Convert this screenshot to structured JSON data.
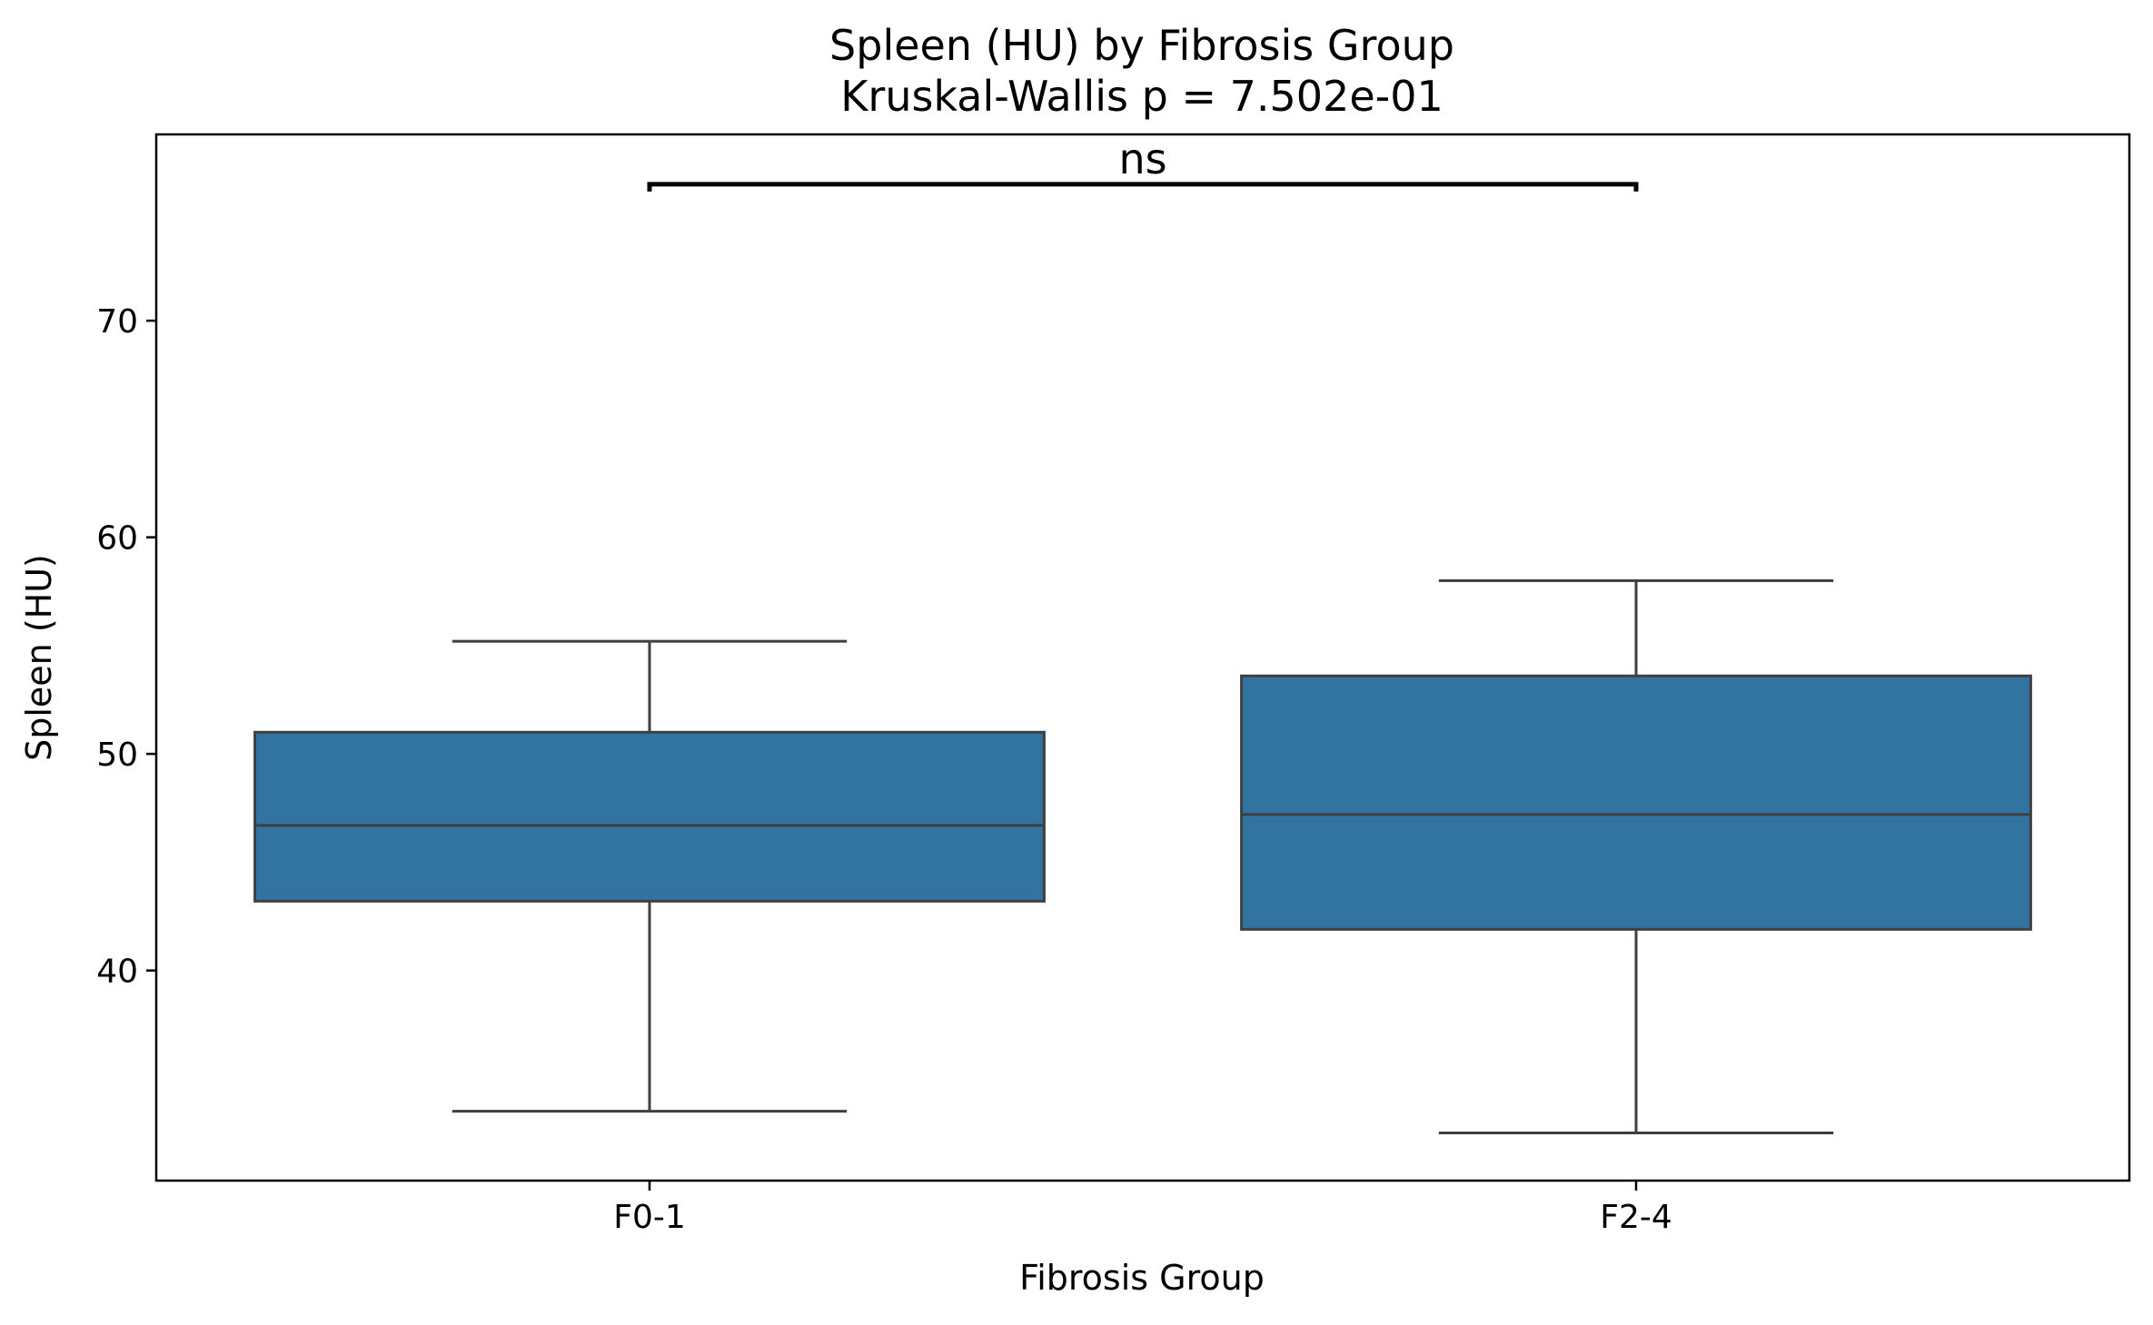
{
  "chart_data": {
    "type": "box",
    "title": "Spleen (HU) by Fibrosis Group",
    "subtitle": "Kruskal-Wallis p = 7.502e-01",
    "xlabel": "Fibrosis Group",
    "ylabel": "Spleen (HU)",
    "ylim": [
      30.3,
      78.6
    ],
    "yticks": [
      40,
      50,
      60,
      70
    ],
    "categories": [
      "F0-1",
      "F2-4"
    ],
    "boxes": [
      {
        "category": "F0-1",
        "whisker_low": 33.5,
        "q1": 43.2,
        "median": 46.7,
        "q3": 51.0,
        "whisker_high": 55.2
      },
      {
        "category": "F2-4",
        "whisker_low": 32.5,
        "q1": 41.9,
        "median": 47.2,
        "q3": 53.6,
        "whisker_high": 58.0
      }
    ],
    "significance": {
      "label": "ns",
      "y": 76.3
    },
    "box_color": "#3274a1",
    "line_color": "#3f3f3f",
    "grid": false,
    "legend": "none"
  }
}
